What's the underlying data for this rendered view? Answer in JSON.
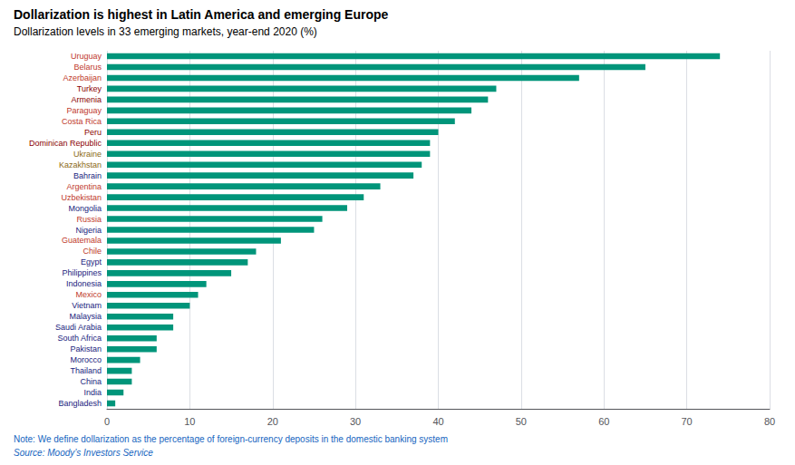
{
  "chart_data": {
    "type": "bar",
    "orientation": "horizontal",
    "title": "Dollarization is highest in Latin America and emerging Europe",
    "subtitle": "Dollarization levels in 33 emerging markets, year-end 2020 (%)",
    "annotations": [
      "Note: We define dollarization as the percentage of foreign-currency deposits in the domestic banking system",
      "Source: Moody’s Investors Service"
    ],
    "categories": [
      "Uruguay",
      "Belarus",
      "Azerbaijan",
      "Turkey",
      "Armenia",
      "Paraguay",
      "Costa Rica",
      "Peru",
      "Dominican Republic",
      "Ukraine",
      "Kazakhstan",
      "Bahrain",
      "Argentina",
      "Uzbekistan",
      "Mongolia",
      "Russia",
      "Nigeria",
      "Guatemala",
      "Chile",
      "Egypt",
      "Philippines",
      "Indonesia",
      "Mexico",
      "Vietnam",
      "Malaysia",
      "Saudi Arabia",
      "South Africa",
      "Pakistan",
      "Morocco",
      "Thailand",
      "China",
      "India",
      "Bangladesh"
    ],
    "values": [
      74,
      65,
      57,
      47,
      46,
      44,
      42,
      40,
      39,
      39,
      38,
      37,
      33,
      31,
      29,
      26,
      25,
      21,
      18,
      17,
      15,
      12,
      11,
      10,
      8,
      8,
      6,
      6,
      4,
      3,
      3,
      2,
      1
    ],
    "color": "#00957A",
    "label_colors": [
      "#C0392B",
      "#C0392B",
      "#C0392B",
      "#8B0000",
      "#8B0000",
      "#C0392B",
      "#C0392B",
      "#8B0000",
      "#8B0000",
      "#8B6914",
      "#8B6914",
      "#1a237e",
      "#C0392B",
      "#C0392B",
      "#1a237e",
      "#C0392B",
      "#1a237e",
      "#C0392B",
      "#C0392B",
      "#1a237e",
      "#1a237e",
      "#1a237e",
      "#C0392B",
      "#1a237e",
      "#1a237e",
      "#1a237e",
      "#1a237e",
      "#1a237e",
      "#1a237e",
      "#1a237e",
      "#1a237e",
      "#1a237e",
      "#1a237e"
    ],
    "xlim": [
      0,
      80
    ],
    "xticks": [
      0,
      10,
      20,
      30,
      40,
      50,
      60,
      70,
      80
    ],
    "grid": true
  }
}
